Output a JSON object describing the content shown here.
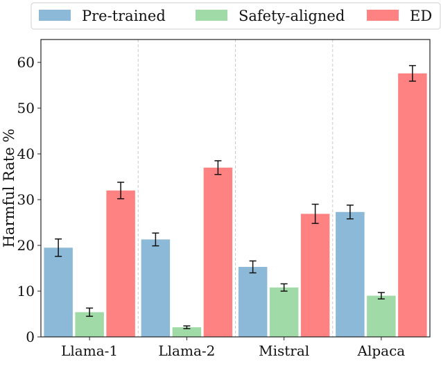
{
  "chart_data": {
    "type": "bar",
    "categories": [
      "Llama-1",
      "Llama-2",
      "Mistral",
      "Alpaca"
    ],
    "series": [
      {
        "name": "Pre-trained",
        "color": "#8BB9D7",
        "values": [
          19.5,
          21.3,
          15.3,
          27.3
        ],
        "errors": [
          1.9,
          1.4,
          1.3,
          1.5
        ]
      },
      {
        "name": "Safety-aligned",
        "color": "#A0DAA6",
        "values": [
          5.4,
          2.1,
          10.8,
          9.0
        ],
        "errors": [
          0.9,
          0.3,
          0.8,
          0.7
        ]
      },
      {
        "name": "ED",
        "color": "#FF8283",
        "values": [
          32.0,
          37.0,
          26.9,
          57.6
        ],
        "errors": [
          1.8,
          1.5,
          2.1,
          1.7
        ]
      }
    ],
    "ylabel": "Harmful Rate %",
    "xlabel": "",
    "ylim": [
      0,
      65
    ],
    "yticks": [
      0,
      10,
      20,
      30,
      40,
      50,
      60
    ],
    "legend": "top, outside, single row",
    "group_separators": "dashed vertical lines",
    "grid": false
  }
}
